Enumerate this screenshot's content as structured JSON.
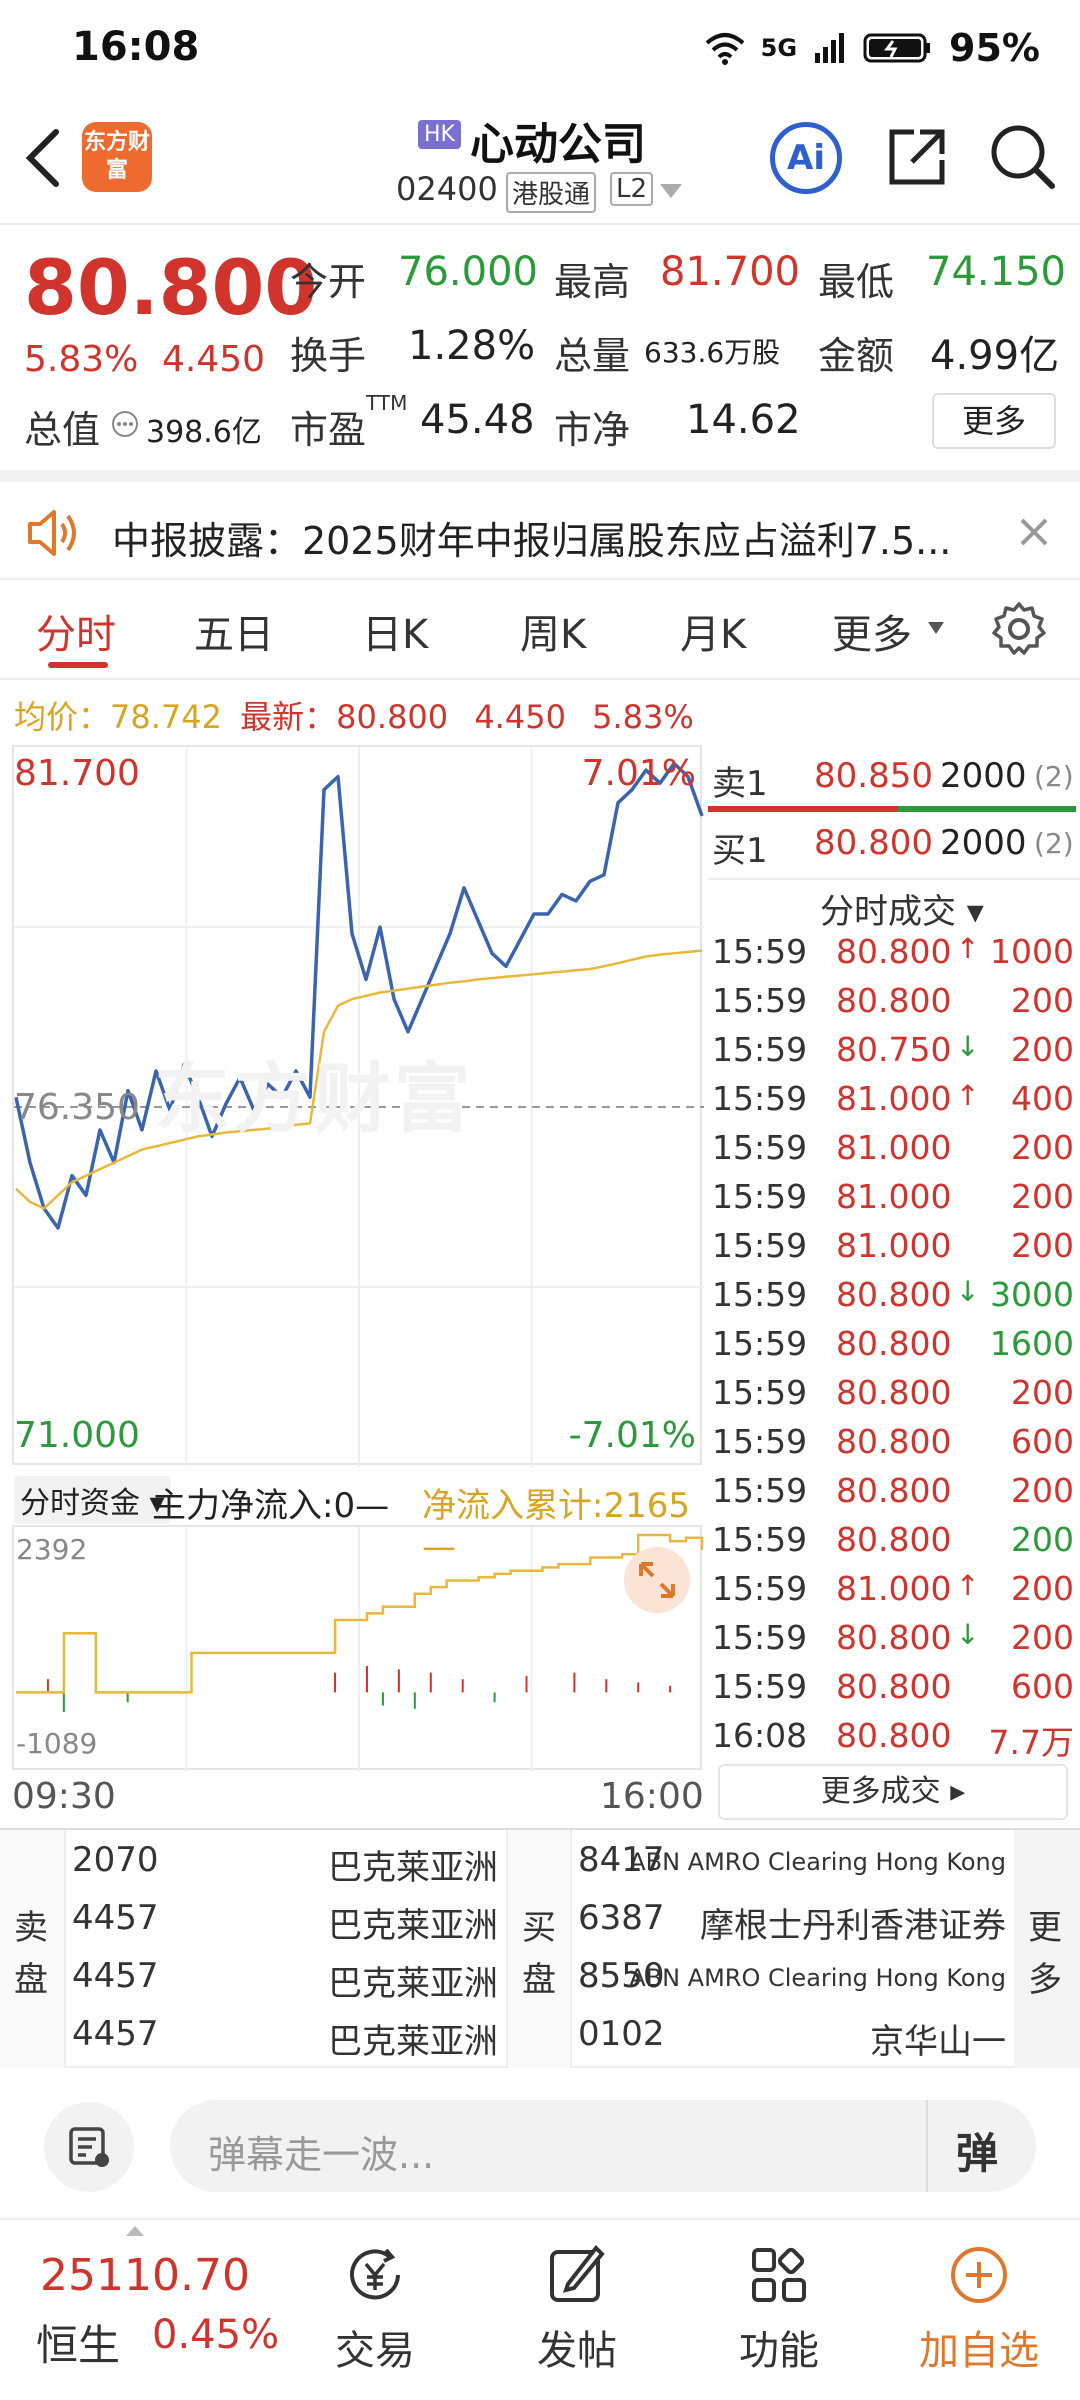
{
  "status_bar": {
    "time": "16:08",
    "network": "5G",
    "battery": "95%"
  },
  "header": {
    "brand_logo": "东方财富",
    "market_badge": "HK",
    "stock_name": "心动公司",
    "stock_code": "02400",
    "connect_tag": "港股通",
    "level_tag": "L2",
    "ai_label": "Ai"
  },
  "quote": {
    "price": "80.800",
    "change_pct": "5.83%",
    "change": "4.450",
    "open_label": "今开",
    "open": "76.000",
    "high_label": "最高",
    "high": "81.700",
    "low_label": "最低",
    "low": "74.150",
    "turnover_label": "换手",
    "turnover": "1.28%",
    "volume_label": "总量",
    "volume": "633.6万股",
    "amount_label": "金额",
    "amount": "4.99亿",
    "mktcap_label": "总值",
    "mktcap": "398.6亿",
    "pe_label": "市盈",
    "pe_sup": "TTM",
    "pe": "45.48",
    "pb_label": "市净",
    "pb": "14.62",
    "more_button": "更多"
  },
  "notice": {
    "text": "中报披露：2025财年中报归属股东应占溢利7.5..."
  },
  "tabs": [
    {
      "label": "分时"
    },
    {
      "label": "五日"
    },
    {
      "label": "日K"
    },
    {
      "label": "周K"
    },
    {
      "label": "月K"
    },
    {
      "label": "更多"
    }
  ],
  "info_line": {
    "avg_label": "均价：",
    "avg": "78.742",
    "last_label": "最新：",
    "last": "80.800",
    "chg": "4.450",
    "pct": "5.83%"
  },
  "chart_data": {
    "type": "line",
    "top_label": "81.700",
    "mid_label": "76.350",
    "bottom_label": "71.000",
    "top_pct": "7.01%",
    "bottom_pct": "-7.01%",
    "watermark": "东方财富",
    "x_start": "09:30",
    "x_end": "16:00",
    "ylim": [
      71.0,
      81.7
    ],
    "colors": {
      "price": "#3b64b0",
      "avg": "#e8b83a"
    },
    "series": [
      {
        "name": "price",
        "values": [
          76.5,
          75.5,
          74.8,
          74.5,
          75.3,
          75.0,
          76.0,
          75.5,
          76.6,
          76.0,
          76.9,
          76.3,
          77.0,
          76.5,
          75.9,
          76.4,
          76.8,
          76.3,
          76.7,
          76.5,
          76.9,
          76.5,
          81.2,
          81.4,
          79.0,
          78.3,
          79.1,
          78.0,
          77.5,
          78.0,
          78.5,
          79.0,
          79.7,
          79.2,
          78.7,
          78.5,
          78.9,
          79.3,
          79.3,
          79.6,
          79.5,
          79.8,
          79.9,
          81.0,
          81.2,
          81.5,
          81.3,
          81.6,
          81.4,
          80.8
        ]
      },
      {
        "name": "avg",
        "values": [
          75.1,
          74.9,
          74.8,
          75.0,
          75.2,
          75.3,
          75.4,
          75.5,
          75.6,
          75.7,
          75.75,
          75.8,
          75.85,
          75.9,
          75.93,
          75.96,
          75.98,
          76.0,
          76.02,
          76.05,
          76.08,
          76.1,
          77.5,
          77.9,
          78.0,
          78.05,
          78.1,
          78.13,
          78.16,
          78.19,
          78.22,
          78.25,
          78.27,
          78.3,
          78.32,
          78.34,
          78.36,
          78.38,
          78.4,
          78.42,
          78.44,
          78.46,
          78.5,
          78.55,
          78.6,
          78.65,
          78.68,
          78.7,
          78.72,
          78.742
        ]
      }
    ]
  },
  "fund_flow": {
    "selector": "分时资金",
    "main_net_label": "主力净流入:0—",
    "cum_label": "净流入累计:2165—",
    "top_value": "2392",
    "bottom_value": "-1089",
    "ylim": [
      -1089,
      2392
    ],
    "cum_values": [
      0,
      0,
      0,
      900,
      900,
      0,
      0,
      0,
      0,
      0,
      0,
      600,
      600,
      600,
      600,
      600,
      600,
      600,
      600,
      600,
      1100,
      1100,
      1200,
      1300,
      1300,
      1500,
      1600,
      1700,
      1700,
      1750,
      1800,
      1850,
      1850,
      1900,
      1950,
      1950,
      2050,
      2050,
      2100,
      2392,
      2392,
      2300,
      2350,
      2165
    ],
    "bars": [
      0,
      0,
      200,
      -300,
      0,
      0,
      0,
      -150,
      0,
      0,
      0,
      0,
      0,
      0,
      0,
      0,
      0,
      0,
      0,
      0,
      300,
      0,
      400,
      -200,
      350,
      -250,
      300,
      0,
      200,
      0,
      -150,
      0,
      250,
      0,
      0,
      300,
      0,
      200,
      0,
      150,
      0,
      100,
      0,
      0
    ]
  },
  "order_book": {
    "ask": {
      "label": "卖1",
      "price": "80.850",
      "qty": "2000",
      "count": "(2)"
    },
    "bid": {
      "label": "买1",
      "price": "80.800",
      "qty": "2000",
      "count": "(2)"
    }
  },
  "trades_header": "分时成交",
  "trades": [
    {
      "time": "15:59",
      "price": "80.800",
      "arrow": "↑",
      "qty": "1000",
      "color": "red"
    },
    {
      "time": "15:59",
      "price": "80.800",
      "arrow": "",
      "qty": "200",
      "color": "red"
    },
    {
      "time": "15:59",
      "price": "80.750",
      "arrow": "↓",
      "qty": "200",
      "color": "red"
    },
    {
      "time": "15:59",
      "price": "81.000",
      "arrow": "↑",
      "qty": "400",
      "color": "red"
    },
    {
      "time": "15:59",
      "price": "81.000",
      "arrow": "",
      "qty": "200",
      "color": "red"
    },
    {
      "time": "15:59",
      "price": "81.000",
      "arrow": "",
      "qty": "200",
      "color": "red"
    },
    {
      "time": "15:59",
      "price": "81.000",
      "arrow": "",
      "qty": "200",
      "color": "red"
    },
    {
      "time": "15:59",
      "price": "80.800",
      "arrow": "↓",
      "qty": "3000",
      "color": "green"
    },
    {
      "time": "15:59",
      "price": "80.800",
      "arrow": "",
      "qty": "1600",
      "color": "green"
    },
    {
      "time": "15:59",
      "price": "80.800",
      "arrow": "",
      "qty": "200",
      "color": "red"
    },
    {
      "time": "15:59",
      "price": "80.800",
      "arrow": "",
      "qty": "600",
      "color": "red"
    },
    {
      "time": "15:59",
      "price": "80.800",
      "arrow": "",
      "qty": "200",
      "color": "red"
    },
    {
      "time": "15:59",
      "price": "80.800",
      "arrow": "",
      "qty": "200",
      "color": "green"
    },
    {
      "time": "15:59",
      "price": "81.000",
      "arrow": "↑",
      "qty": "200",
      "color": "red"
    },
    {
      "time": "15:59",
      "price": "80.800",
      "arrow": "↓",
      "qty": "200",
      "color": "red"
    },
    {
      "time": "15:59",
      "price": "80.800",
      "arrow": "",
      "qty": "600",
      "color": "red"
    },
    {
      "time": "16:08",
      "price": "80.800",
      "arrow": "",
      "qty": "7.7万",
      "color": "red"
    }
  ],
  "more_trades": "更多成交",
  "brokers": {
    "sell_label": "卖盘",
    "buy_label": "买盘",
    "more_label": "更多",
    "sell": [
      {
        "code": "2070",
        "name": "巴克莱亚洲"
      },
      {
        "code": "4457",
        "name": "巴克莱亚洲"
      },
      {
        "code": "4457",
        "name": "巴克莱亚洲"
      },
      {
        "code": "4457",
        "name": "巴克莱亚洲"
      }
    ],
    "buy": [
      {
        "code": "8417",
        "name": "ABN AMRO Clearing Hong Kong",
        "small": true
      },
      {
        "code": "6387",
        "name": "摩根士丹利香港证券",
        "small": false
      },
      {
        "code": "8550",
        "name": "ABN AMRO Clearing Hong Kong",
        "small": true
      },
      {
        "code": "0102",
        "name": "京华山一",
        "small": false
      }
    ]
  },
  "comment_bar": {
    "placeholder": "弹幕走一波...",
    "danmu_button": "弹"
  },
  "bottom_nav": {
    "index_value": "25110.70",
    "index_name": "恒生",
    "index_pct": "0.45%",
    "items": [
      {
        "label": "交易"
      },
      {
        "label": "发帖"
      },
      {
        "label": "功能"
      },
      {
        "label": "加自选"
      }
    ]
  }
}
